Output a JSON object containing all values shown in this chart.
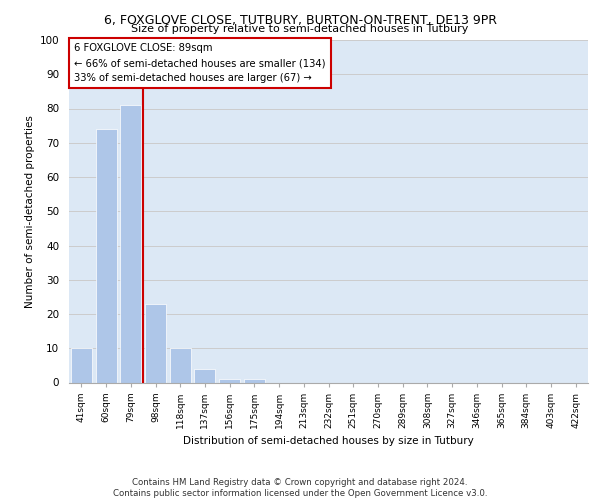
{
  "title1": "6, FOXGLOVE CLOSE, TUTBURY, BURTON-ON-TRENT, DE13 9PR",
  "title2": "Size of property relative to semi-detached houses in Tutbury",
  "xlabel": "Distribution of semi-detached houses by size in Tutbury",
  "ylabel": "Number of semi-detached properties",
  "categories": [
    "41sqm",
    "60sqm",
    "79sqm",
    "98sqm",
    "118sqm",
    "137sqm",
    "156sqm",
    "175sqm",
    "194sqm",
    "213sqm",
    "232sqm",
    "251sqm",
    "270sqm",
    "289sqm",
    "308sqm",
    "327sqm",
    "346sqm",
    "365sqm",
    "384sqm",
    "403sqm",
    "422sqm"
  ],
  "values": [
    10,
    74,
    81,
    23,
    10,
    4,
    1,
    1,
    0,
    0,
    0,
    0,
    0,
    0,
    0,
    0,
    0,
    0,
    0,
    0,
    0
  ],
  "bar_color": "#aec6e8",
  "property_line_color": "#cc0000",
  "annotation_line1": "6 FOXGLOVE CLOSE: 89sqm",
  "annotation_line2": "← 66% of semi-detached houses are smaller (134)",
  "annotation_line3": "33% of semi-detached houses are larger (67) →",
  "annotation_box_color": "#cc0000",
  "ylim": [
    0,
    100
  ],
  "yticks": [
    0,
    10,
    20,
    30,
    40,
    50,
    60,
    70,
    80,
    90,
    100
  ],
  "grid_color": "#cccccc",
  "background_color": "#dce8f5",
  "footer": "Contains HM Land Registry data © Crown copyright and database right 2024.\nContains public sector information licensed under the Open Government Licence v3.0."
}
